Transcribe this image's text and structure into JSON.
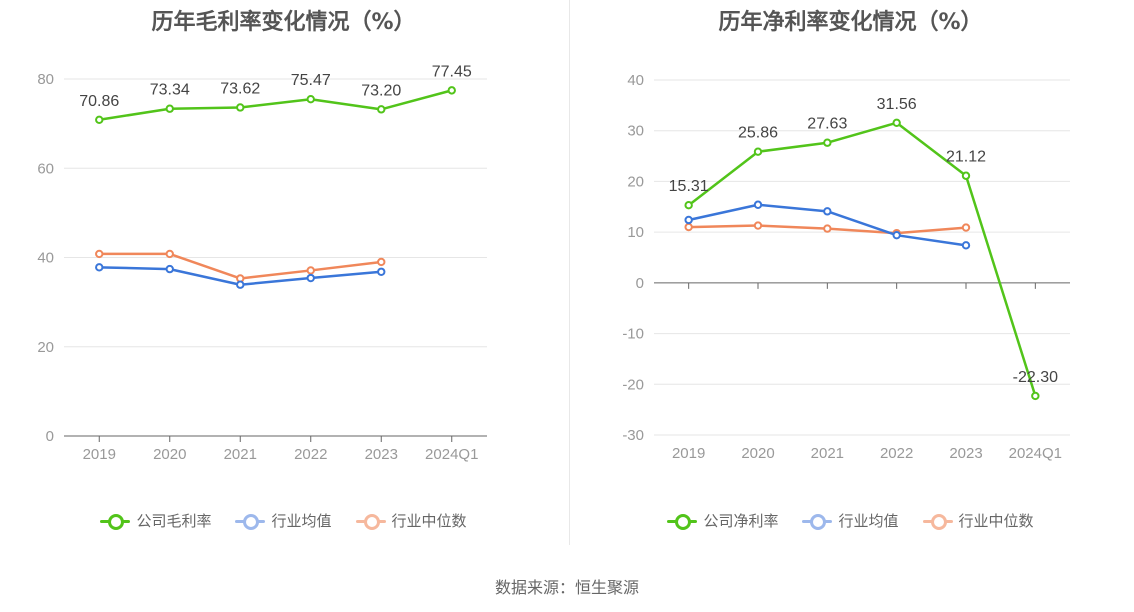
{
  "colors": {
    "company": "#52c41a",
    "industry_avg": "#3a76d9",
    "industry_median": "#f0875a",
    "axis": "#999999",
    "grid": "#e6e6e6",
    "zero_line": "#666666"
  },
  "source": "数据来源：恒生聚源",
  "chart_data": [
    {
      "type": "line",
      "title": "历年毛利率变化情况（%）",
      "categories": [
        "2019",
        "2020",
        "2021",
        "2022",
        "2023",
        "2024Q1"
      ],
      "ylim": [
        0,
        80
      ],
      "yticks": [
        0,
        20,
        40,
        60,
        80
      ],
      "grid": true,
      "legend_position": "bottom",
      "series": [
        {
          "name": "公司毛利率",
          "color": "#52c41a",
          "show_labels": true,
          "values": [
            70.86,
            73.34,
            73.62,
            75.47,
            73.2,
            77.45
          ],
          "labels": [
            "70.86",
            "73.34",
            "73.62",
            "75.47",
            "73.20",
            "77.45"
          ]
        },
        {
          "name": "行业均值",
          "color": "#3a76d9",
          "show_labels": false,
          "values": [
            37.8,
            37.4,
            33.9,
            35.4,
            36.8,
            null
          ]
        },
        {
          "name": "行业中位数",
          "color": "#f0875a",
          "show_labels": false,
          "values": [
            40.8,
            40.8,
            35.3,
            37.1,
            39.0,
            null
          ]
        }
      ]
    },
    {
      "type": "line",
      "title": "历年净利率变化情况（%）",
      "categories": [
        "2019",
        "2020",
        "2021",
        "2022",
        "2023",
        "2024Q1"
      ],
      "ylim": [
        -30,
        40
      ],
      "yticks": [
        -30,
        -20,
        -10,
        0,
        10,
        20,
        30,
        40
      ],
      "grid": true,
      "legend_position": "bottom",
      "series": [
        {
          "name": "公司净利率",
          "color": "#52c41a",
          "show_labels": true,
          "values": [
            15.31,
            25.86,
            27.63,
            31.56,
            21.12,
            -22.3
          ],
          "labels": [
            "15.31",
            "25.86",
            "27.63",
            "31.56",
            "21.12",
            "-22.30"
          ]
        },
        {
          "name": "行业均值",
          "color": "#3a76d9",
          "show_labels": false,
          "values": [
            12.4,
            15.4,
            14.1,
            9.4,
            7.4,
            null
          ]
        },
        {
          "name": "行业中位数",
          "color": "#f0875a",
          "show_labels": false,
          "values": [
            11.0,
            11.3,
            10.7,
            9.8,
            10.9,
            null
          ]
        }
      ]
    }
  ]
}
